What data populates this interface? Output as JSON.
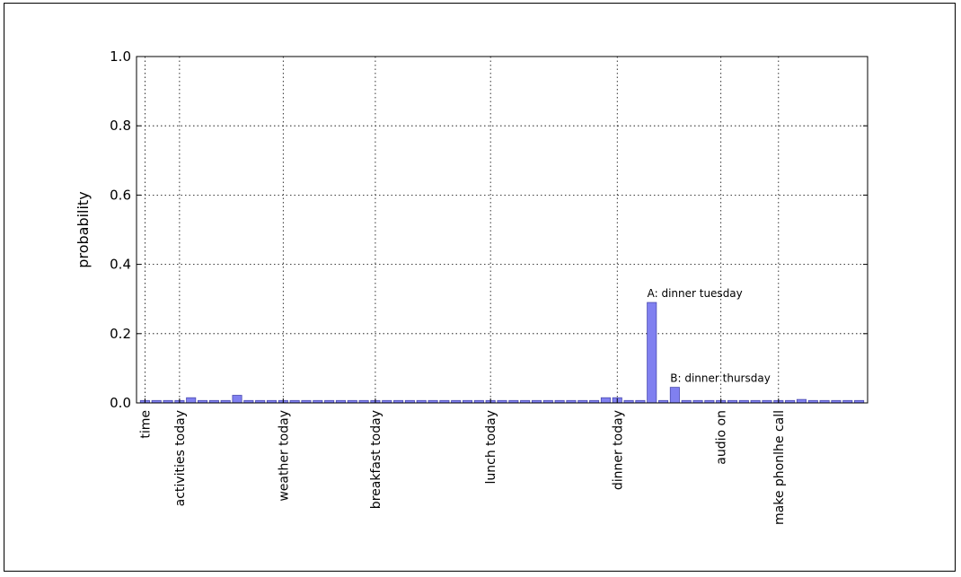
{
  "chart_data": {
    "type": "bar",
    "title": "",
    "xlabel": "",
    "ylabel": "probability",
    "ylim": [
      0,
      1.0
    ],
    "yticks": [
      "0.0",
      "0.2",
      "0.4",
      "0.6",
      "0.8",
      "1.0"
    ],
    "grid": true,
    "bar_color": "#8080f0",
    "bar_edge": "#4b4bb0",
    "bar_count": 63,
    "category_labels": [
      {
        "index": 0,
        "label": "time"
      },
      {
        "index": 3,
        "label": "activities today"
      },
      {
        "index": 12,
        "label": "weather today"
      },
      {
        "index": 20,
        "label": "breakfast today"
      },
      {
        "index": 30,
        "label": "lunch today"
      },
      {
        "index": 41,
        "label": "dinner today"
      },
      {
        "index": 50,
        "label": "audio on"
      },
      {
        "index": 55,
        "label": "make phonlhe call"
      }
    ],
    "values": [
      0.007,
      0.007,
      0.007,
      0.007,
      0.015,
      0.007,
      0.007,
      0.007,
      0.022,
      0.007,
      0.007,
      0.007,
      0.007,
      0.007,
      0.007,
      0.007,
      0.007,
      0.007,
      0.007,
      0.007,
      0.007,
      0.007,
      0.007,
      0.007,
      0.007,
      0.007,
      0.007,
      0.007,
      0.007,
      0.007,
      0.007,
      0.007,
      0.007,
      0.007,
      0.007,
      0.007,
      0.007,
      0.007,
      0.007,
      0.007,
      0.015,
      0.015,
      0.007,
      0.007,
      0.29,
      0.007,
      0.045,
      0.007,
      0.007,
      0.007,
      0.007,
      0.007,
      0.007,
      0.007,
      0.007,
      0.007,
      0.007,
      0.01,
      0.007,
      0.007,
      0.007,
      0.007,
      0.007
    ],
    "annotations": [
      {
        "text": "A: dinner tuesday",
        "index": 44,
        "value": 0.29
      },
      {
        "text": "B: dinner thursday",
        "index": 46,
        "value": 0.045
      }
    ]
  }
}
